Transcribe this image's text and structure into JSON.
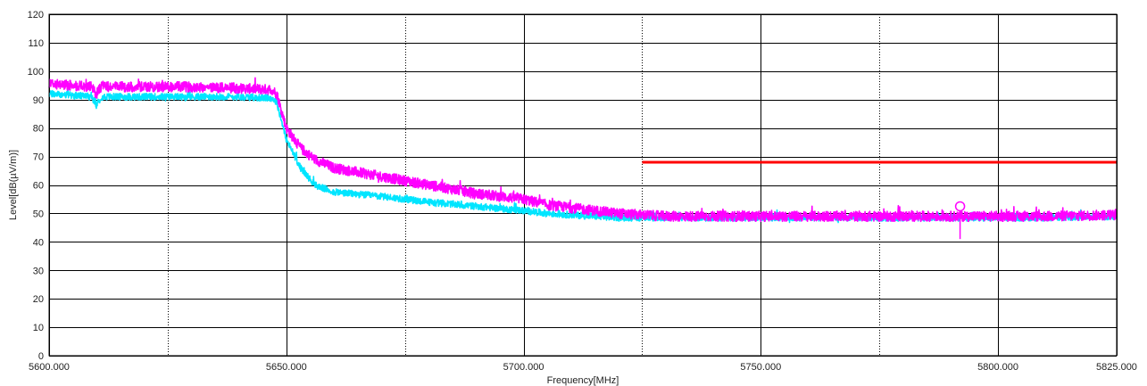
{
  "chart_data": {
    "type": "line",
    "title": "",
    "xlabel": "Frequency[MHz]",
    "ylabel": "Level[dB(µV/m)]",
    "xlim": [
      5600,
      5825
    ],
    "ylim": [
      0,
      120
    ],
    "x_major_ticks": [
      5600,
      5650,
      5700,
      5750,
      5800,
      5825
    ],
    "x_tick_labels": [
      "5600.000",
      "5650.000",
      "5700.000",
      "5750.000",
      "5800.000",
      "5825.000"
    ],
    "x_minor_gridlines": [
      5625,
      5675,
      5725,
      5775
    ],
    "y_ticks": [
      0,
      10,
      20,
      30,
      40,
      50,
      60,
      70,
      80,
      90,
      100,
      110,
      120
    ],
    "y_tick_labels": [
      "0",
      "10",
      "20",
      "30",
      "40",
      "50",
      "60",
      "70",
      "80",
      "90",
      "100",
      "110",
      "120"
    ],
    "grid": true,
    "legend": "none",
    "series": [
      {
        "color": "#ff00ff",
        "style": "noisy-band",
        "x": [
          5600,
          5605,
          5609,
          5610,
          5611,
          5615,
          5620,
          5630,
          5640,
          5647,
          5648,
          5650,
          5653,
          5656,
          5660,
          5670,
          5680,
          5690,
          5700,
          5705,
          5710,
          5715,
          5720,
          5730,
          5750,
          5770,
          5790,
          5810,
          5825
        ],
        "y": [
          95.5,
          95,
          94.5,
          92,
          94.5,
          94.5,
          94.5,
          94.5,
          94,
          93.5,
          92,
          80,
          73,
          69,
          66,
          63,
          60,
          57,
          55,
          53,
          52,
          51,
          50,
          49,
          49,
          49,
          49,
          49,
          49.5
        ],
        "noise": 1.8
      },
      {
        "color": "#00e5ff",
        "style": "noisy-band",
        "x": [
          5600,
          5605,
          5609,
          5610,
          5611,
          5615,
          5620,
          5630,
          5640,
          5647,
          5648,
          5650,
          5653,
          5656,
          5660,
          5670,
          5680,
          5690,
          5700,
          5705,
          5710,
          5715,
          5720,
          5730,
          5750,
          5770,
          5790,
          5810,
          5825
        ],
        "y": [
          92,
          91.5,
          91,
          88,
          91,
          91,
          91,
          91,
          91,
          90.5,
          89,
          76,
          66,
          60,
          57.5,
          56,
          54,
          52.5,
          51,
          50,
          49.5,
          49,
          48.5,
          48.5,
          48.5,
          48.5,
          48.5,
          48.5,
          49
        ],
        "noise": 1.2
      }
    ],
    "limit_line": {
      "color": "#ff0000",
      "x": [
        5725,
        5825
      ],
      "y": [
        68,
        68
      ]
    },
    "marker": {
      "color": "#ff00ff",
      "x": 5792,
      "y": 52.5,
      "y_bottom": 41
    }
  }
}
